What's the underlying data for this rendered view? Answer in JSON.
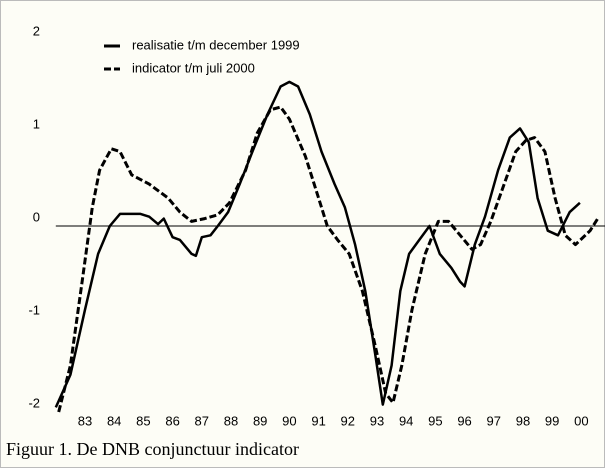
{
  "chart_data": {
    "type": "line",
    "caption": "Figuur 1. De DNB conjunctuur indicator",
    "xlim": [
      82,
      100.7
    ],
    "xticks": [
      83,
      84,
      85,
      86,
      87,
      88,
      89,
      90,
      91,
      92,
      93,
      94,
      95,
      96,
      97,
      98,
      99,
      {
        "value": 100,
        "label": "00"
      }
    ],
    "ylim": [
      -2,
      2
    ],
    "yticks": [
      2,
      1,
      0,
      -1,
      -2
    ],
    "series": [
      {
        "name": "realisatie t/m december 1999",
        "color": "#000000",
        "dash": "solid",
        "x": [
          82.0,
          82.5,
          83.0,
          83.45,
          83.85,
          84.2,
          84.9,
          85.2,
          85.5,
          85.7,
          86.0,
          86.25,
          86.65,
          86.8,
          87.0,
          87.3,
          87.55,
          87.9,
          88.3,
          88.8,
          89.25,
          89.7,
          90.0,
          90.3,
          90.7,
          91.1,
          91.55,
          91.9,
          92.25,
          92.6,
          92.95,
          93.2,
          93.5,
          93.8,
          94.1,
          94.45,
          94.8,
          95.15,
          95.55,
          95.85,
          96.0,
          96.35,
          96.7,
          97.15,
          97.55,
          97.9,
          98.2,
          98.5,
          98.85,
          99.2,
          99.6,
          99.95
        ],
        "values": [
          -1.95,
          -1.6,
          -0.9,
          -0.3,
          0,
          0.13,
          0.13,
          0.1,
          0.02,
          0.08,
          -0.12,
          -0.15,
          -0.3,
          -0.32,
          -0.12,
          -0.1,
          0,
          0.15,
          0.45,
          0.85,
          1.2,
          1.5,
          1.55,
          1.5,
          1.2,
          0.8,
          0.45,
          0.2,
          -0.2,
          -0.7,
          -1.4,
          -1.92,
          -1.5,
          -0.7,
          -0.3,
          -0.15,
          0,
          -0.3,
          -0.45,
          -0.6,
          -0.65,
          -0.2,
          0.1,
          0.6,
          0.95,
          1.05,
          0.9,
          0.3,
          -0.05,
          -0.1,
          0.15,
          0.25
        ]
      },
      {
        "name": "indicator t/m juli 2000",
        "color": "#000000",
        "dash": "dashed",
        "x": [
          82.1,
          82.5,
          82.9,
          83.25,
          83.5,
          83.9,
          84.2,
          84.6,
          85.2,
          85.85,
          86.25,
          86.65,
          87.1,
          87.55,
          87.95,
          88.5,
          88.9,
          89.35,
          89.7,
          90.0,
          90.55,
          91.0,
          91.3,
          91.65,
          92.05,
          92.5,
          92.95,
          93.3,
          93.55,
          93.85,
          94.2,
          94.65,
          95.1,
          95.45,
          95.85,
          96.25,
          96.55,
          96.9,
          97.3,
          97.75,
          98.1,
          98.4,
          98.75,
          99.1,
          99.45,
          99.8,
          100.3,
          100.6
        ],
        "values": [
          -2.0,
          -1.5,
          -0.6,
          0.2,
          0.6,
          0.83,
          0.8,
          0.55,
          0.45,
          0.3,
          0.15,
          0.05,
          0.08,
          0.12,
          0.25,
          0.6,
          1.0,
          1.25,
          1.28,
          1.15,
          0.75,
          0.3,
          0.0,
          -0.15,
          -0.3,
          -0.7,
          -1.3,
          -1.8,
          -1.9,
          -1.5,
          -0.9,
          -0.3,
          0.05,
          0.05,
          -0.1,
          -0.25,
          -0.2,
          0.05,
          0.4,
          0.8,
          0.92,
          0.95,
          0.8,
          0.3,
          -0.1,
          -0.2,
          -0.05,
          0.1
        ]
      }
    ]
  }
}
